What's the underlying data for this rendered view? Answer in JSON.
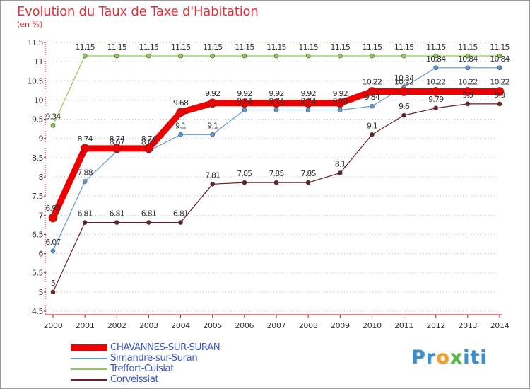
{
  "title": "Evolution du Taux de Taxe d'Habitation",
  "subtitle": "(en %)",
  "brand": {
    "letters": [
      {
        "ch": "P",
        "color": "#3a8fd0"
      },
      {
        "ch": "r",
        "color": "#3a8fd0"
      },
      {
        "ch": "o",
        "color": "#f3a02a"
      },
      {
        "ch": "x",
        "color": "#56b94a"
      },
      {
        "ch": "i",
        "color": "#3a8fd0"
      },
      {
        "ch": "t",
        "color": "#3a8fd0"
      },
      {
        "ch": "i",
        "color": "#3a8fd0"
      }
    ]
  },
  "chart_data": {
    "type": "line",
    "title": "Evolution du Taux de Taxe d'Habitation",
    "ylabel": "(en %)",
    "xlabel": "",
    "x": [
      "2000",
      "2001",
      "2002",
      "2003",
      "2004",
      "2005",
      "2006",
      "2007",
      "2008",
      "2009",
      "2010",
      "2011",
      "2012",
      "2013",
      "2014"
    ],
    "ylim": [
      4.5,
      11.5
    ],
    "yticks": [
      "4.5",
      "5",
      "5.5",
      "6",
      "6.5",
      "7",
      "7.5",
      "8",
      "8.5",
      "9",
      "9.5",
      "10",
      "10.5",
      "11",
      "11.5"
    ],
    "grid": "horizontal dotted",
    "legend_position": "bottom-left",
    "series": [
      {
        "name": "Corveissiat",
        "color": "#6b1f22",
        "width": 1.2,
        "marker": 3,
        "values": [
          5,
          6.81,
          6.81,
          6.81,
          6.81,
          7.81,
          7.85,
          7.85,
          7.85,
          8.1,
          9.1,
          9.6,
          9.79,
          9.9,
          9.9
        ],
        "labels": [
          "5",
          "6.81",
          "6.81",
          "6.81",
          "6.81",
          "7.81",
          "7.85",
          "7.85",
          "7.85",
          "8.1",
          "9.1",
          "9.6",
          "9.79",
          "9.9",
          "9.9"
        ]
      },
      {
        "name": "Treffort-Cuisiat",
        "color": "#8ccc52",
        "width": 1.2,
        "marker": 3,
        "values": [
          9.34,
          11.15,
          11.15,
          11.15,
          11.15,
          11.15,
          11.15,
          11.15,
          11.15,
          11.15,
          11.15,
          11.15,
          11.15,
          11.15,
          11.15
        ],
        "labels": [
          "9.34",
          "11.15",
          "11.15",
          "11.15",
          "11.15",
          "11.15",
          "11.15",
          "11.15",
          "11.15",
          "11.15",
          "11.15",
          "11.15",
          "11.15",
          "11.15",
          "11.15"
        ]
      },
      {
        "name": "Simandre-sur-Suran",
        "color": "#5a9ad8",
        "width": 1.2,
        "marker": 3,
        "values": [
          6.07,
          7.88,
          8.67,
          8.67,
          9.1,
          9.1,
          9.74,
          9.74,
          9.74,
          9.74,
          9.84,
          10.34,
          10.84,
          10.84,
          10.84
        ],
        "labels": [
          "6.07",
          "7.88",
          "8.67",
          "8.67",
          "9.1",
          "9.1",
          "9.74",
          "9.74",
          "9.74",
          "9.74",
          "9.84",
          "10.34",
          "10.84",
          "10.84",
          "10.84"
        ]
      },
      {
        "name": "CHAVANNES-SUR-SURAN",
        "color": "#ee0000",
        "width": 9,
        "marker": 6,
        "values": [
          6.93,
          8.74,
          8.74,
          8.74,
          9.68,
          9.92,
          9.92,
          9.92,
          9.92,
          9.92,
          10.22,
          10.22,
          10.22,
          10.22,
          10.22
        ],
        "labels": [
          "6.93",
          "8.74",
          "8.74",
          "8.74",
          "9.68",
          "9.92",
          "9.92",
          "9.92",
          "9.92",
          "9.92",
          "10.22",
          "10.22",
          "10.22",
          "10.22",
          "10.22"
        ]
      }
    ],
    "legend": [
      {
        "name": "CHAVANNES-SUR-SURAN",
        "color": "#ee0000",
        "thickness": 9
      },
      {
        "name": "Simandre-sur-Suran",
        "color": "#5a9ad8",
        "thickness": 2
      },
      {
        "name": "Treffort-Cuisiat",
        "color": "#8ccc52",
        "thickness": 2
      },
      {
        "name": "Corveissiat",
        "color": "#6b1f22",
        "thickness": 2
      }
    ]
  }
}
